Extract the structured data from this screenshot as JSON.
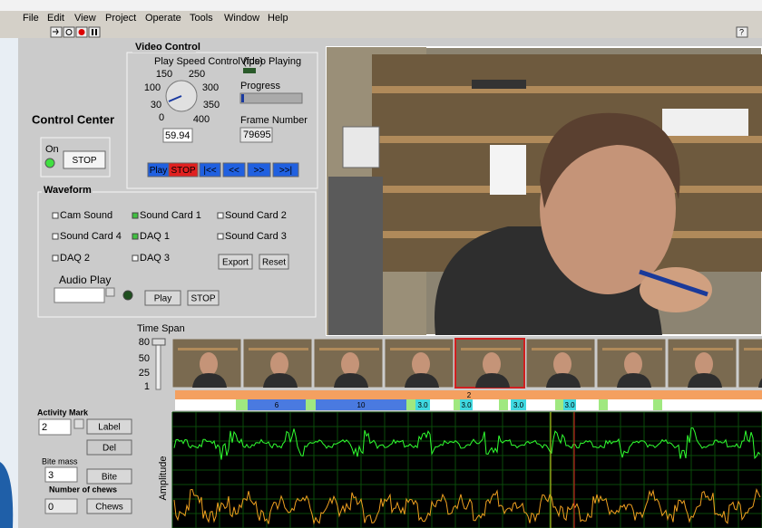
{
  "menu": [
    "File",
    "Edit",
    "View",
    "Project",
    "Operate",
    "Tools",
    "Window",
    "Help"
  ],
  "video_control": {
    "title": "Video Control",
    "speed_label": "Play Speed Control (fps)",
    "playing_label": "Video Playing",
    "knob_labels": [
      "150",
      "250",
      "100",
      "300",
      "30",
      "350",
      "0",
      "400"
    ],
    "speed_value": "59.94",
    "progress_label": "Progress",
    "frame_label": "Frame Number",
    "frame_value": "79695",
    "buttons": [
      "Play",
      "STOP",
      "|<<",
      "<<",
      ">>",
      ">>|"
    ]
  },
  "control_center": {
    "title": "Control Center",
    "on_label": "On",
    "stop": "STOP"
  },
  "waveform": {
    "title": "Waveform",
    "channels": [
      {
        "name": "Cam Sound",
        "checked": false
      },
      {
        "name": "Sound Card 1",
        "checked": true
      },
      {
        "name": "Sound Card 2",
        "checked": false
      },
      {
        "name": "Sound Card 4",
        "checked": false
      },
      {
        "name": "DAQ 1",
        "checked": true
      },
      {
        "name": "Sound Card 3",
        "checked": false
      },
      {
        "name": "DAQ 2",
        "checked": false
      },
      {
        "name": "DAQ 3",
        "checked": false
      }
    ],
    "export": "Export",
    "reset": "Reset",
    "audio_play": "Audio Play",
    "play": "Play",
    "stop": "STOP"
  },
  "time_span": {
    "label": "Time Span",
    "ticks": [
      "80",
      "50",
      "25",
      "1"
    ]
  },
  "timeline": {
    "top_label": "2",
    "segments": [
      "6",
      "10",
      "3.0",
      "3.0",
      "3.0",
      "3.0"
    ]
  },
  "activity": {
    "title": "Activity Mark",
    "mark_value": "2",
    "label_button": "Label",
    "del_button": "Del",
    "bite_mass_label": "Bite mass",
    "bite_mass_value": "3",
    "bite_button": "Bite",
    "chews_label": "Number of chews",
    "chews_value": "0",
    "chews_button": "Chews"
  },
  "plot": {
    "y_label": "Amplitude"
  }
}
